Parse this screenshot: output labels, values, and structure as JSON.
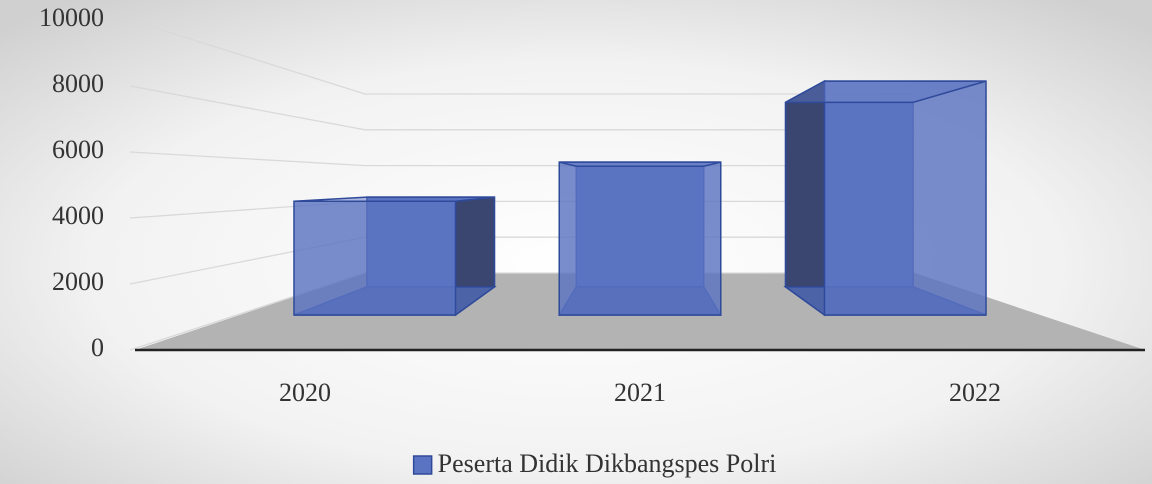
{
  "chart_data": {
    "type": "bar3d",
    "categories": [
      "2020",
      "2021",
      "2022"
    ],
    "series": [
      {
        "name": "Peserta Didik Dikbangspes Polri",
        "color": "#5b74c2",
        "values": [
          4350,
          5850,
          8950
        ]
      }
    ],
    "ylim": [
      0,
      10000
    ],
    "yticks": [
      0,
      2000,
      4000,
      6000,
      8000,
      10000
    ],
    "grid": true,
    "legend": "bottom"
  }
}
